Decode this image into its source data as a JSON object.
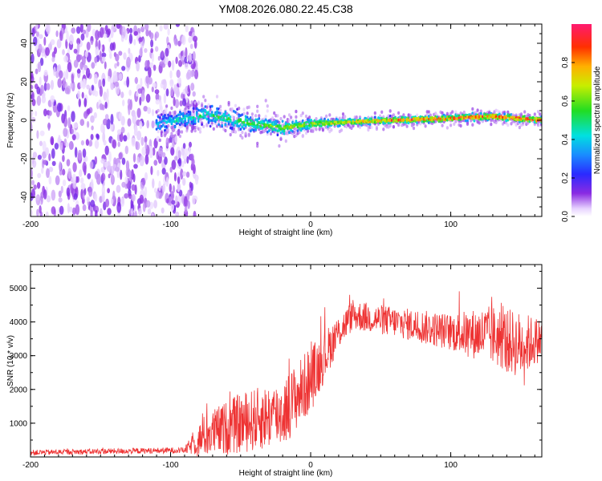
{
  "title": "YM08.2026.080.22.45.C38",
  "chart_data": [
    {
      "type": "heatmap",
      "name": "spectrogram",
      "xlabel": "Height of straight line (km)",
      "ylabel": "Frequency (Hz)",
      "xlim": [
        -200,
        165
      ],
      "ylim": [
        -50,
        50
      ],
      "xticks": [
        -200,
        -100,
        0,
        100
      ],
      "yticks": [
        -40,
        -20,
        0,
        20,
        40
      ],
      "ridge_start_km": -110,
      "noise_end_km": -85,
      "ridge_path": [
        {
          "x": -110,
          "y": -2
        },
        {
          "x": -75,
          "y": 3
        },
        {
          "x": -40,
          "y": -2
        },
        {
          "x": -20,
          "y": -4
        },
        {
          "x": 0,
          "y": -2
        },
        {
          "x": 25,
          "y": -1
        },
        {
          "x": 60,
          "y": 0
        },
        {
          "x": 100,
          "y": 1
        },
        {
          "x": 130,
          "y": 2
        },
        {
          "x": 165,
          "y": 0
        }
      ],
      "colorbar": {
        "label": "Normalized spectral amplitude",
        "range": [
          0,
          1
        ],
        "ticks": [
          "0.0",
          "0.2",
          "0.4",
          "0.6",
          "0.8"
        ]
      }
    },
    {
      "type": "line",
      "name": "snr",
      "xlabel": "Height of straight line (km)",
      "ylabel": "SNR (10 * v/v)",
      "xlim": [
        -200,
        165
      ],
      "ylim": [
        0,
        5700
      ],
      "xticks": [
        -200,
        -100,
        0,
        100
      ],
      "yticks": [
        1000,
        2000,
        3000,
        4000,
        5000
      ],
      "color": "#ee3333",
      "trend": [
        {
          "x": -200,
          "y": 130,
          "spread": 80
        },
        {
          "x": -90,
          "y": 200,
          "spread": 90
        },
        {
          "x": -75,
          "y": 650,
          "spread": 650
        },
        {
          "x": -50,
          "y": 1000,
          "spread": 900
        },
        {
          "x": -20,
          "y": 1300,
          "spread": 1000
        },
        {
          "x": 0,
          "y": 2300,
          "spread": 1000
        },
        {
          "x": 20,
          "y": 3700,
          "spread": 500
        },
        {
          "x": 30,
          "y": 4200,
          "spread": 450
        },
        {
          "x": 60,
          "y": 4000,
          "spread": 450
        },
        {
          "x": 100,
          "y": 3700,
          "spread": 550
        },
        {
          "x": 130,
          "y": 3600,
          "spread": 900
        },
        {
          "x": 150,
          "y": 3300,
          "spread": 1000
        },
        {
          "x": 165,
          "y": 3500,
          "spread": 600
        }
      ]
    }
  ]
}
